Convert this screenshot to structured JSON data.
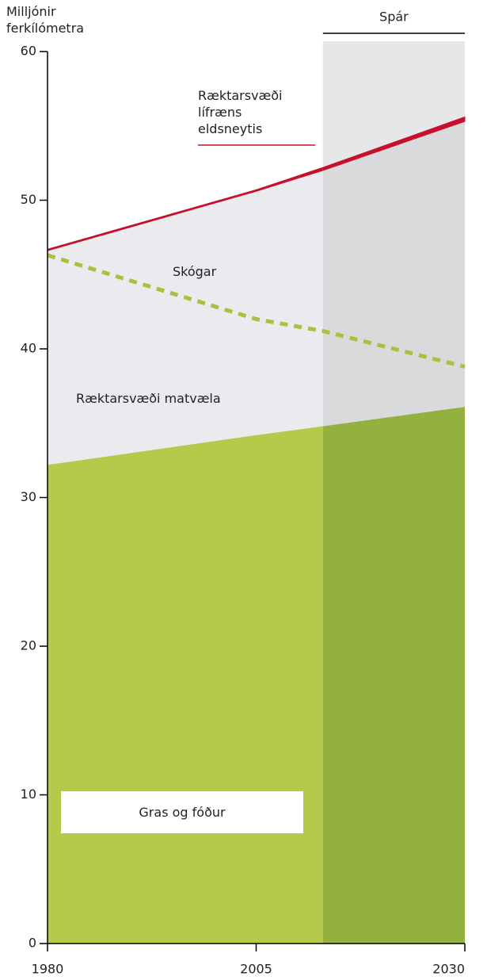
{
  "chart_data": {
    "type": "area",
    "y_label": [
      "Milljónir",
      "ferkílómetra"
    ],
    "forecast_label": "Spár",
    "forecast_start": 2013,
    "x": [
      1980,
      2005,
      2013,
      2030
    ],
    "xlim": [
      1980,
      2030
    ],
    "xticks": [
      1980,
      2005,
      2030
    ],
    "ylim": [
      0,
      60
    ],
    "yticks": [
      0,
      10,
      20,
      30,
      40,
      50,
      60
    ],
    "series": [
      {
        "name": "Gras og fóður",
        "color": "#b5c94a",
        "forecast_color": "#94b03e",
        "values": [
          32.2,
          34.2,
          34.8,
          36.1
        ]
      },
      {
        "name": "Ræktarsvæði matvæla",
        "color": "#eaebef",
        "forecast_color": "#d9dadc",
        "values": [
          14.4,
          16.4,
          17.2,
          19.2
        ]
      },
      {
        "name": "Ræktarsvæði lífræns eldsneytis",
        "color": "#c8102e",
        "forecast_color": "#c8102e",
        "values": [
          0.1,
          0.1,
          0.2,
          0.3
        ]
      }
    ],
    "lines": [
      {
        "name": "Skógar",
        "color": "#a8c23f",
        "dashed": true,
        "values": [
          46.3,
          42.0,
          41.2,
          38.8
        ]
      }
    ]
  }
}
